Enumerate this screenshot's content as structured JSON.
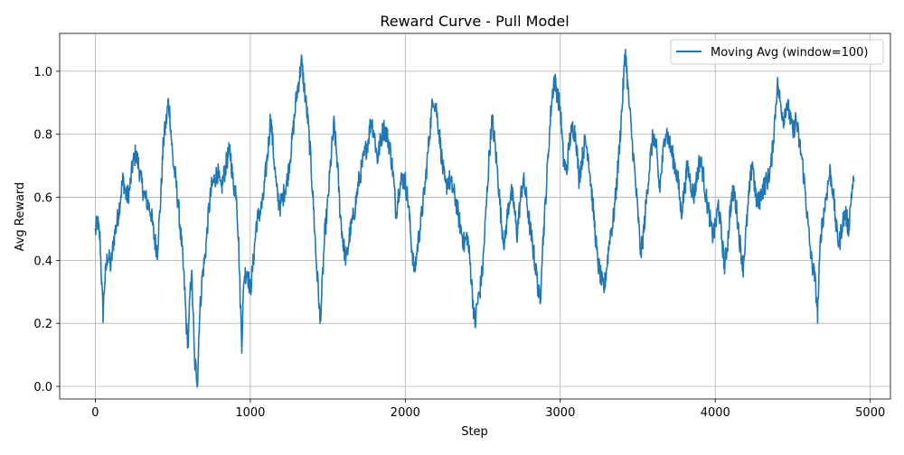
{
  "chart_data": {
    "type": "line",
    "title": "Reward Curve - Pull Model",
    "xlabel": "Step",
    "ylabel": "Avg Reward",
    "xlim": [
      -230,
      5130
    ],
    "ylim": [
      -0.04,
      1.12
    ],
    "xticks": [
      0,
      1000,
      2000,
      3000,
      4000,
      5000
    ],
    "yticks": [
      0.0,
      0.2,
      0.4,
      0.6,
      0.8,
      1.0
    ],
    "xtick_labels": [
      "0",
      "1000",
      "2000",
      "3000",
      "4000",
      "5000"
    ],
    "ytick_labels": [
      "0.0",
      "0.2",
      "0.4",
      "0.6",
      "0.8",
      "1.0"
    ],
    "grid": true,
    "legend_position": "upper right",
    "series": [
      {
        "name": "Moving Avg (window=100)",
        "color": "#1f77b4",
        "keypoints": [
          [
            0,
            0.49
          ],
          [
            15,
            0.52
          ],
          [
            30,
            0.47
          ],
          [
            45,
            0.28
          ],
          [
            50,
            0.23
          ],
          [
            60,
            0.33
          ],
          [
            80,
            0.42
          ],
          [
            100,
            0.38
          ],
          [
            120,
            0.47
          ],
          [
            150,
            0.55
          ],
          [
            170,
            0.63
          ],
          [
            180,
            0.66
          ],
          [
            200,
            0.6
          ],
          [
            220,
            0.62
          ],
          [
            240,
            0.7
          ],
          [
            260,
            0.74
          ],
          [
            280,
            0.7
          ],
          [
            300,
            0.64
          ],
          [
            320,
            0.6
          ],
          [
            340,
            0.58
          ],
          [
            360,
            0.55
          ],
          [
            380,
            0.47
          ],
          [
            400,
            0.43
          ],
          [
            420,
            0.58
          ],
          [
            440,
            0.78
          ],
          [
            460,
            0.85
          ],
          [
            470,
            0.9
          ],
          [
            480,
            0.87
          ],
          [
            500,
            0.72
          ],
          [
            520,
            0.65
          ],
          [
            540,
            0.55
          ],
          [
            560,
            0.43
          ],
          [
            575,
            0.32
          ],
          [
            590,
            0.17
          ],
          [
            600,
            0.14
          ],
          [
            610,
            0.28
          ],
          [
            620,
            0.37
          ],
          [
            630,
            0.25
          ],
          [
            640,
            0.08
          ],
          [
            650,
            0.05
          ],
          [
            660,
            0.02
          ],
          [
            670,
            0.2
          ],
          [
            690,
            0.35
          ],
          [
            710,
            0.42
          ],
          [
            730,
            0.55
          ],
          [
            750,
            0.63
          ],
          [
            770,
            0.66
          ],
          [
            790,
            0.68
          ],
          [
            810,
            0.62
          ],
          [
            830,
            0.67
          ],
          [
            850,
            0.72
          ],
          [
            870,
            0.75
          ],
          [
            890,
            0.64
          ],
          [
            910,
            0.62
          ],
          [
            925,
            0.45
          ],
          [
            935,
            0.28
          ],
          [
            945,
            0.14
          ],
          [
            960,
            0.35
          ],
          [
            980,
            0.37
          ],
          [
            1000,
            0.3
          ],
          [
            1020,
            0.4
          ],
          [
            1040,
            0.52
          ],
          [
            1060,
            0.55
          ],
          [
            1080,
            0.58
          ],
          [
            1100,
            0.68
          ],
          [
            1120,
            0.78
          ],
          [
            1130,
            0.86
          ],
          [
            1150,
            0.74
          ],
          [
            1170,
            0.62
          ],
          [
            1190,
            0.57
          ],
          [
            1210,
            0.6
          ],
          [
            1240,
            0.66
          ],
          [
            1270,
            0.78
          ],
          [
            1300,
            0.93
          ],
          [
            1320,
            0.99
          ],
          [
            1330,
            1.03
          ],
          [
            1350,
            0.94
          ],
          [
            1370,
            0.85
          ],
          [
            1390,
            0.72
          ],
          [
            1410,
            0.55
          ],
          [
            1425,
            0.4
          ],
          [
            1440,
            0.3
          ],
          [
            1450,
            0.2
          ],
          [
            1465,
            0.33
          ],
          [
            1480,
            0.48
          ],
          [
            1500,
            0.58
          ],
          [
            1520,
            0.72
          ],
          [
            1540,
            0.83
          ],
          [
            1560,
            0.72
          ],
          [
            1580,
            0.55
          ],
          [
            1600,
            0.45
          ],
          [
            1620,
            0.4
          ],
          [
            1640,
            0.48
          ],
          [
            1670,
            0.55
          ],
          [
            1700,
            0.65
          ],
          [
            1730,
            0.72
          ],
          [
            1760,
            0.78
          ],
          [
            1780,
            0.85
          ],
          [
            1800,
            0.8
          ],
          [
            1820,
            0.72
          ],
          [
            1840,
            0.78
          ],
          [
            1860,
            0.82
          ],
          [
            1880,
            0.8
          ],
          [
            1900,
            0.76
          ],
          [
            1920,
            0.68
          ],
          [
            1940,
            0.55
          ],
          [
            1960,
            0.63
          ],
          [
            1980,
            0.66
          ],
          [
            2000,
            0.65
          ],
          [
            2020,
            0.58
          ],
          [
            2040,
            0.45
          ],
          [
            2060,
            0.36
          ],
          [
            2080,
            0.45
          ],
          [
            2100,
            0.52
          ],
          [
            2130,
            0.65
          ],
          [
            2160,
            0.82
          ],
          [
            2180,
            0.92
          ],
          [
            2200,
            0.88
          ],
          [
            2220,
            0.8
          ],
          [
            2240,
            0.7
          ],
          [
            2260,
            0.63
          ],
          [
            2280,
            0.66
          ],
          [
            2310,
            0.62
          ],
          [
            2330,
            0.58
          ],
          [
            2350,
            0.52
          ],
          [
            2380,
            0.45
          ],
          [
            2400,
            0.48
          ],
          [
            2420,
            0.38
          ],
          [
            2440,
            0.25
          ],
          [
            2450,
            0.19
          ],
          [
            2460,
            0.25
          ],
          [
            2480,
            0.3
          ],
          [
            2500,
            0.38
          ],
          [
            2520,
            0.55
          ],
          [
            2540,
            0.72
          ],
          [
            2560,
            0.85
          ],
          [
            2580,
            0.76
          ],
          [
            2600,
            0.65
          ],
          [
            2620,
            0.52
          ],
          [
            2640,
            0.45
          ],
          [
            2660,
            0.55
          ],
          [
            2680,
            0.62
          ],
          [
            2700,
            0.58
          ],
          [
            2720,
            0.48
          ],
          [
            2740,
            0.58
          ],
          [
            2760,
            0.66
          ],
          [
            2780,
            0.6
          ],
          [
            2800,
            0.52
          ],
          [
            2820,
            0.45
          ],
          [
            2840,
            0.38
          ],
          [
            2860,
            0.3
          ],
          [
            2870,
            0.26
          ],
          [
            2880,
            0.4
          ],
          [
            2900,
            0.55
          ],
          [
            2920,
            0.72
          ],
          [
            2940,
            0.88
          ],
          [
            2960,
            0.98
          ],
          [
            2980,
            0.93
          ],
          [
            3000,
            0.88
          ],
          [
            3020,
            0.72
          ],
          [
            3040,
            0.68
          ],
          [
            3060,
            0.78
          ],
          [
            3080,
            0.82
          ],
          [
            3100,
            0.8
          ],
          [
            3120,
            0.66
          ],
          [
            3140,
            0.72
          ],
          [
            3160,
            0.78
          ],
          [
            3180,
            0.74
          ],
          [
            3200,
            0.63
          ],
          [
            3220,
            0.52
          ],
          [
            3240,
            0.4
          ],
          [
            3260,
            0.35
          ],
          [
            3280,
            0.3
          ],
          [
            3300,
            0.38
          ],
          [
            3320,
            0.48
          ],
          [
            3340,
            0.52
          ],
          [
            3360,
            0.62
          ],
          [
            3380,
            0.75
          ],
          [
            3400,
            0.9
          ],
          [
            3420,
            1.07
          ],
          [
            3440,
            0.92
          ],
          [
            3460,
            0.8
          ],
          [
            3480,
            0.68
          ],
          [
            3500,
            0.55
          ],
          [
            3520,
            0.42
          ],
          [
            3540,
            0.5
          ],
          [
            3560,
            0.62
          ],
          [
            3580,
            0.72
          ],
          [
            3600,
            0.8
          ],
          [
            3620,
            0.75
          ],
          [
            3640,
            0.62
          ],
          [
            3660,
            0.72
          ],
          [
            3680,
            0.82
          ],
          [
            3700,
            0.78
          ],
          [
            3720,
            0.74
          ],
          [
            3740,
            0.7
          ],
          [
            3760,
            0.65
          ],
          [
            3780,
            0.55
          ],
          [
            3800,
            0.62
          ],
          [
            3820,
            0.7
          ],
          [
            3840,
            0.65
          ],
          [
            3860,
            0.6
          ],
          [
            3880,
            0.66
          ],
          [
            3900,
            0.72
          ],
          [
            3920,
            0.68
          ],
          [
            3940,
            0.6
          ],
          [
            3960,
            0.55
          ],
          [
            3980,
            0.48
          ],
          [
            4000,
            0.5
          ],
          [
            4020,
            0.58
          ],
          [
            4040,
            0.48
          ],
          [
            4060,
            0.38
          ],
          [
            4080,
            0.46
          ],
          [
            4100,
            0.58
          ],
          [
            4120,
            0.62
          ],
          [
            4140,
            0.55
          ],
          [
            4160,
            0.45
          ],
          [
            4180,
            0.38
          ],
          [
            4200,
            0.5
          ],
          [
            4220,
            0.62
          ],
          [
            4240,
            0.72
          ],
          [
            4260,
            0.6
          ],
          [
            4280,
            0.58
          ],
          [
            4300,
            0.62
          ],
          [
            4320,
            0.64
          ],
          [
            4340,
            0.66
          ],
          [
            4360,
            0.7
          ],
          [
            4380,
            0.82
          ],
          [
            4400,
            0.96
          ],
          [
            4420,
            0.9
          ],
          [
            4440,
            0.85
          ],
          [
            4460,
            0.9
          ],
          [
            4480,
            0.86
          ],
          [
            4500,
            0.8
          ],
          [
            4520,
            0.85
          ],
          [
            4540,
            0.78
          ],
          [
            4560,
            0.72
          ],
          [
            4580,
            0.62
          ],
          [
            4600,
            0.5
          ],
          [
            4620,
            0.4
          ],
          [
            4640,
            0.35
          ],
          [
            4650,
            0.3
          ],
          [
            4660,
            0.23
          ],
          [
            4680,
            0.48
          ],
          [
            4700,
            0.55
          ],
          [
            4720,
            0.62
          ],
          [
            4740,
            0.68
          ],
          [
            4760,
            0.62
          ],
          [
            4780,
            0.5
          ],
          [
            4800,
            0.45
          ],
          [
            4820,
            0.52
          ],
          [
            4840,
            0.55
          ],
          [
            4860,
            0.5
          ],
          [
            4880,
            0.62
          ],
          [
            4895,
            0.65
          ]
        ]
      }
    ]
  }
}
